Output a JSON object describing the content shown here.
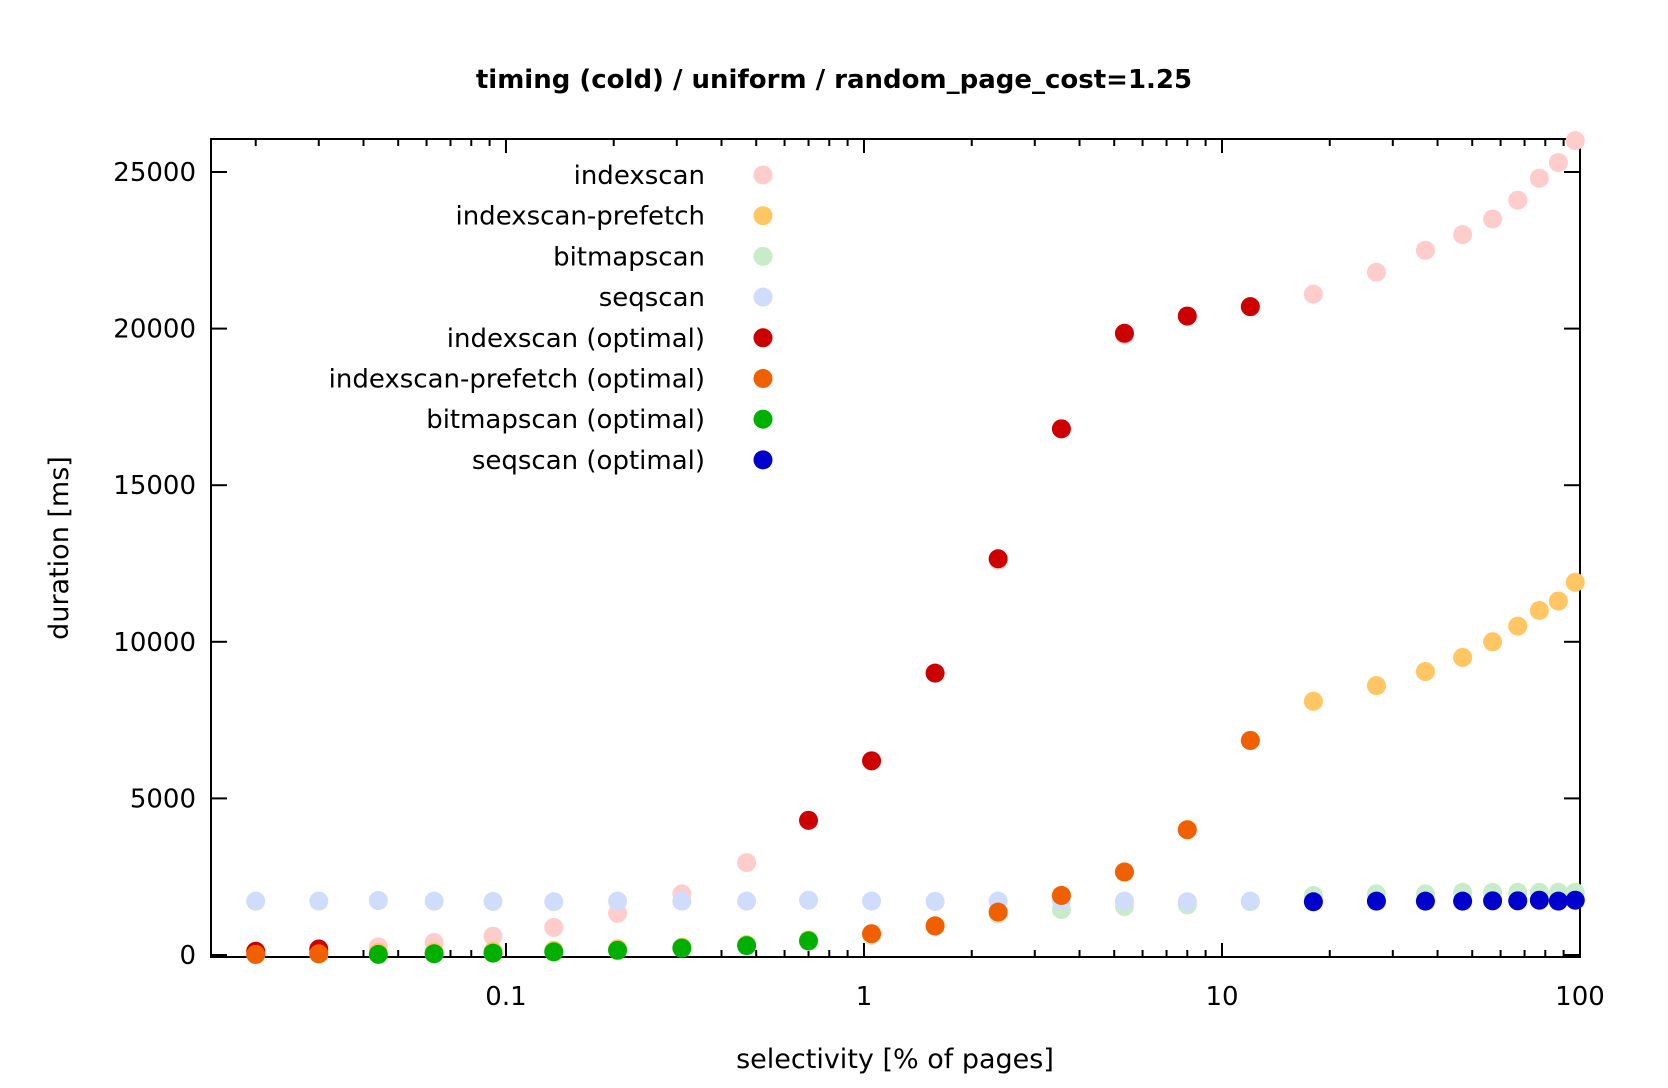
{
  "chart_data": {
    "type": "scatter",
    "title": "timing (cold) / uniform / random_page_cost=1.25",
    "xlabel": "selectivity [% of pages]",
    "ylabel": "duration [ms]",
    "xscale": "log",
    "xlim": [
      0.015,
      100
    ],
    "ylim": [
      0,
      26000
    ],
    "xticks": [
      {
        "value": 0.1,
        "label": "0.1"
      },
      {
        "value": 1,
        "label": "1"
      },
      {
        "value": 10,
        "label": "10"
      },
      {
        "value": 100,
        "label": "100"
      }
    ],
    "yticks": [
      {
        "value": 0,
        "label": "0"
      },
      {
        "value": 5000,
        "label": "5000"
      },
      {
        "value": 10000,
        "label": "10000"
      },
      {
        "value": 15000,
        "label": "15000"
      },
      {
        "value": 20000,
        "label": "20000"
      },
      {
        "value": 25000,
        "label": "25000"
      }
    ],
    "grid": false,
    "legend_position": "top-left",
    "series": [
      {
        "name": "indexscan",
        "color": "#ffcccc",
        "points": [
          [
            0.02,
            100
          ],
          [
            0.03,
            150
          ],
          [
            0.044,
            260
          ],
          [
            0.063,
            400
          ],
          [
            0.092,
            600
          ],
          [
            0.136,
            880
          ],
          [
            0.205,
            1330
          ],
          [
            0.31,
            1950
          ],
          [
            0.47,
            2950
          ],
          [
            0.7,
            4300
          ],
          [
            1.05,
            6200
          ],
          [
            1.58,
            9000
          ],
          [
            2.37,
            12600
          ],
          [
            3.56,
            16800
          ],
          [
            5.34,
            19800
          ],
          [
            8.0,
            20400
          ],
          [
            12.0,
            20700
          ],
          [
            18.0,
            21100
          ],
          [
            27.0,
            21800
          ],
          [
            37.0,
            22500
          ],
          [
            47.0,
            23000
          ],
          [
            57.0,
            23500
          ],
          [
            67.0,
            24100
          ],
          [
            77.0,
            24800
          ],
          [
            87.0,
            25300
          ],
          [
            97.0,
            26000
          ]
        ]
      },
      {
        "name": "indexscan-prefetch",
        "color": "#ffc663",
        "points": [
          [
            0.02,
            20
          ],
          [
            0.03,
            50
          ],
          [
            0.044,
            80
          ],
          [
            0.063,
            100
          ],
          [
            0.092,
            120
          ],
          [
            0.136,
            150
          ],
          [
            0.205,
            200
          ],
          [
            0.31,
            250
          ],
          [
            0.47,
            330
          ],
          [
            0.7,
            480
          ],
          [
            1.05,
            650
          ],
          [
            1.58,
            930
          ],
          [
            2.37,
            1370
          ],
          [
            3.56,
            1900
          ],
          [
            5.34,
            2650
          ],
          [
            8.0,
            4000
          ],
          [
            12.0,
            6850
          ],
          [
            18.0,
            8100
          ],
          [
            27.0,
            8600
          ],
          [
            37.0,
            9050
          ],
          [
            47.0,
            9500
          ],
          [
            57.0,
            10000
          ],
          [
            67.0,
            10500
          ],
          [
            77.0,
            11000
          ],
          [
            87.0,
            11300
          ],
          [
            97.0,
            11900
          ]
        ]
      },
      {
        "name": "bitmapscan",
        "color": "#c8ecc8",
        "points": [
          [
            0.02,
            10
          ],
          [
            0.03,
            15
          ],
          [
            0.044,
            20
          ],
          [
            0.063,
            40
          ],
          [
            0.092,
            60
          ],
          [
            0.136,
            100
          ],
          [
            0.205,
            150
          ],
          [
            0.31,
            220
          ],
          [
            0.47,
            300
          ],
          [
            0.7,
            430
          ],
          [
            1.05,
            620
          ],
          [
            1.58,
            900
          ],
          [
            2.37,
            1300
          ],
          [
            3.56,
            1450
          ],
          [
            5.34,
            1550
          ],
          [
            8.0,
            1600
          ],
          [
            12.0,
            1700
          ],
          [
            18.0,
            1900
          ],
          [
            27.0,
            1950
          ],
          [
            37.0,
            1950
          ],
          [
            47.0,
            2000
          ],
          [
            57.0,
            2000
          ],
          [
            67.0,
            2000
          ],
          [
            77.0,
            2000
          ],
          [
            87.0,
            2000
          ],
          [
            97.0,
            2000
          ]
        ]
      },
      {
        "name": "seqscan",
        "color": "#cfdcfa",
        "points": [
          [
            0.02,
            1720
          ],
          [
            0.03,
            1720
          ],
          [
            0.044,
            1740
          ],
          [
            0.063,
            1720
          ],
          [
            0.092,
            1710
          ],
          [
            0.136,
            1700
          ],
          [
            0.205,
            1720
          ],
          [
            0.31,
            1720
          ],
          [
            0.47,
            1720
          ],
          [
            0.7,
            1750
          ],
          [
            1.05,
            1720
          ],
          [
            1.58,
            1710
          ],
          [
            2.37,
            1720
          ],
          [
            3.56,
            1730
          ],
          [
            5.34,
            1720
          ],
          [
            8.0,
            1700
          ],
          [
            12.0,
            1720
          ],
          [
            18.0,
            1700
          ],
          [
            27.0,
            1720
          ],
          [
            37.0,
            1720
          ],
          [
            47.0,
            1720
          ],
          [
            57.0,
            1730
          ],
          [
            67.0,
            1730
          ],
          [
            77.0,
            1750
          ],
          [
            87.0,
            1720
          ],
          [
            97.0,
            1750
          ]
        ]
      },
      {
        "name": "indexscan (optimal)",
        "color": "#cc0000",
        "points": [
          [
            0.02,
            120
          ],
          [
            0.03,
            190
          ],
          [
            0.7,
            4300
          ],
          [
            1.05,
            6200
          ],
          [
            1.58,
            9000
          ],
          [
            2.37,
            12650
          ],
          [
            3.56,
            16800
          ],
          [
            5.34,
            19850
          ],
          [
            8.0,
            20400
          ],
          [
            12.0,
            20700
          ]
        ]
      },
      {
        "name": "indexscan-prefetch (optimal)",
        "color": "#f06000",
        "points": [
          [
            0.02,
            20
          ],
          [
            0.03,
            40
          ],
          [
            1.05,
            680
          ],
          [
            1.58,
            930
          ],
          [
            2.37,
            1370
          ],
          [
            3.56,
            1900
          ],
          [
            5.34,
            2650
          ],
          [
            8.0,
            4000
          ],
          [
            12.0,
            6850
          ]
        ]
      },
      {
        "name": "bitmapscan (optimal)",
        "color": "#00b000",
        "points": [
          [
            0.044,
            20
          ],
          [
            0.063,
            40
          ],
          [
            0.092,
            60
          ],
          [
            0.136,
            100
          ],
          [
            0.205,
            150
          ],
          [
            0.31,
            220
          ],
          [
            0.47,
            300
          ],
          [
            0.7,
            450
          ]
        ]
      },
      {
        "name": "seqscan (optimal)",
        "color": "#0000cc",
        "points": [
          [
            18.0,
            1700
          ],
          [
            27.0,
            1720
          ],
          [
            37.0,
            1720
          ],
          [
            47.0,
            1720
          ],
          [
            57.0,
            1730
          ],
          [
            67.0,
            1730
          ],
          [
            77.0,
            1750
          ],
          [
            87.0,
            1720
          ],
          [
            97.0,
            1750
          ]
        ]
      }
    ]
  }
}
